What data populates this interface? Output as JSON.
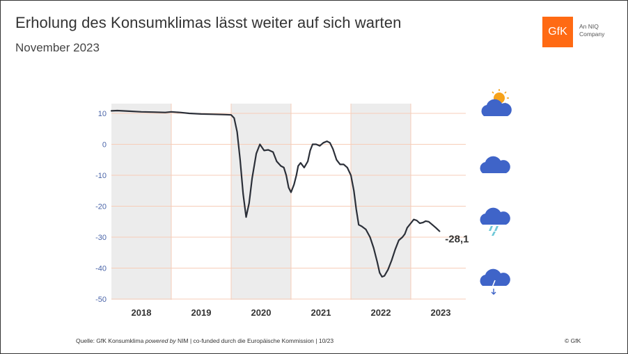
{
  "header": {
    "title": "Erholung des Konsumklimas lässt weiter auf sich warten",
    "subtitle": "November 2023"
  },
  "brand": {
    "logo_text": "GfK",
    "tag_line1": "An NIQ",
    "tag_line2": "Company",
    "accent_color": "#ff6a13"
  },
  "footer": {
    "source_prefix": "Quelle: GfK Konsumklima ",
    "source_italic": "powered by",
    "source_suffix": " NIM | co-funded durch die Europäische Kommission | 10/23",
    "copyright": "© GfK"
  },
  "icons": [
    "sun-cloud-icon",
    "cloud-icon",
    "rain-cloud-icon",
    "storm-cloud-icon"
  ],
  "chart_data": {
    "type": "line",
    "title": "Erholung des Konsumklimas lässt weiter auf sich warten",
    "subtitle": "November 2023",
    "xlabel": "",
    "ylabel": "",
    "ylim": [
      -50,
      10
    ],
    "yticks": [
      10,
      0,
      -10,
      -20,
      -30,
      -40,
      -50
    ],
    "years": [
      "2018",
      "2019",
      "2020",
      "2021",
      "2022",
      "2023"
    ],
    "shaded_years": [
      "2018",
      "2020",
      "2022"
    ],
    "last_value_label": "-28,1",
    "line_color": "#2b2f38",
    "tick_color": "#4a64a8",
    "grid_color": "#f7cdb8",
    "shade_color": "#ececec",
    "series": [
      {
        "name": "GfK Konsumklima",
        "points": [
          [
            2018.0,
            10.8
          ],
          [
            2018.1,
            10.9
          ],
          [
            2018.3,
            10.7
          ],
          [
            2018.5,
            10.5
          ],
          [
            2018.7,
            10.4
          ],
          [
            2018.9,
            10.3
          ],
          [
            2019.0,
            10.5
          ],
          [
            2019.15,
            10.3
          ],
          [
            2019.3,
            10.0
          ],
          [
            2019.5,
            9.8
          ],
          [
            2019.7,
            9.7
          ],
          [
            2019.9,
            9.6
          ],
          [
            2020.0,
            9.5
          ],
          [
            2020.05,
            8.5
          ],
          [
            2020.1,
            4.0
          ],
          [
            2020.15,
            -5.0
          ],
          [
            2020.2,
            -16.0
          ],
          [
            2020.25,
            -23.5
          ],
          [
            2020.3,
            -19.0
          ],
          [
            2020.35,
            -11.0
          ],
          [
            2020.42,
            -3.0
          ],
          [
            2020.48,
            0.0
          ],
          [
            2020.55,
            -2.0
          ],
          [
            2020.62,
            -1.8
          ],
          [
            2020.7,
            -2.5
          ],
          [
            2020.76,
            -5.5
          ],
          [
            2020.83,
            -7.0
          ],
          [
            2020.88,
            -7.5
          ],
          [
            2020.92,
            -10.0
          ],
          [
            2020.96,
            -14.0
          ],
          [
            2021.0,
            -15.5
          ],
          [
            2021.05,
            -13.0
          ],
          [
            2021.09,
            -10.0
          ],
          [
            2021.12,
            -7.0
          ],
          [
            2021.16,
            -6.0
          ],
          [
            2021.22,
            -7.5
          ],
          [
            2021.28,
            -5.5
          ],
          [
            2021.32,
            -2.0
          ],
          [
            2021.36,
            0.0
          ],
          [
            2021.42,
            0.0
          ],
          [
            2021.48,
            -0.5
          ],
          [
            2021.54,
            0.5
          ],
          [
            2021.6,
            1.0
          ],
          [
            2021.65,
            0.5
          ],
          [
            2021.7,
            -1.5
          ],
          [
            2021.76,
            -5.0
          ],
          [
            2021.82,
            -6.5
          ],
          [
            2021.88,
            -6.5
          ],
          [
            2021.94,
            -7.5
          ],
          [
            2022.0,
            -10.0
          ],
          [
            2022.05,
            -15.0
          ],
          [
            2022.09,
            -21.0
          ],
          [
            2022.13,
            -26.0
          ],
          [
            2022.18,
            -26.5
          ],
          [
            2022.25,
            -27.5
          ],
          [
            2022.32,
            -30.0
          ],
          [
            2022.38,
            -33.5
          ],
          [
            2022.44,
            -38.0
          ],
          [
            2022.48,
            -41.5
          ],
          [
            2022.52,
            -42.8
          ],
          [
            2022.56,
            -42.5
          ],
          [
            2022.62,
            -40.5
          ],
          [
            2022.68,
            -37.5
          ],
          [
            2022.74,
            -34.0
          ],
          [
            2022.8,
            -31.0
          ],
          [
            2022.86,
            -30.0
          ],
          [
            2022.9,
            -29.0
          ],
          [
            2022.94,
            -27.0
          ],
          [
            2023.0,
            -25.5
          ],
          [
            2023.05,
            -24.3
          ],
          [
            2023.1,
            -24.6
          ],
          [
            2023.15,
            -25.5
          ],
          [
            2023.2,
            -25.3
          ],
          [
            2023.25,
            -24.8
          ],
          [
            2023.3,
            -25.0
          ],
          [
            2023.36,
            -26.0
          ],
          [
            2023.42,
            -27.0
          ],
          [
            2023.48,
            -28.1
          ]
        ]
      }
    ]
  }
}
